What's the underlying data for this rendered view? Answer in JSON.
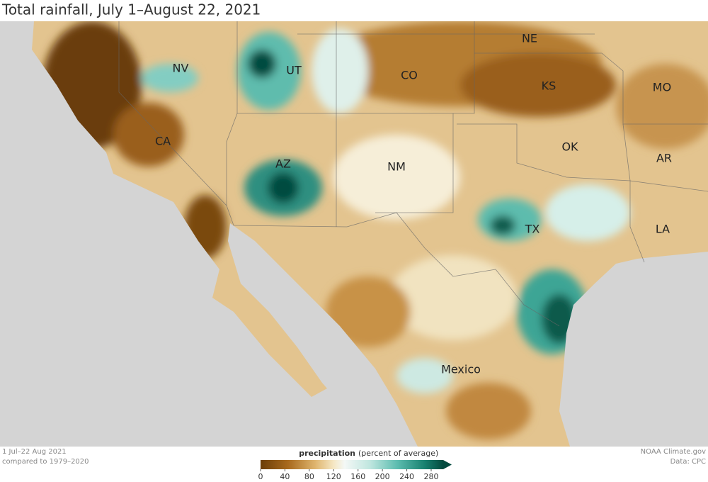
{
  "title": "Total rainfall, July 1–August 22, 2021",
  "labels": [
    "NV",
    "UT",
    "CO",
    "NE",
    "KS",
    "MO",
    "CA",
    "AZ",
    "NM",
    "OK",
    "AR",
    "TX",
    "LA",
    "Mexico"
  ],
  "legend": {
    "title": "precipitation",
    "subtitle": "(percent of average)",
    "ticks": [
      0,
      40,
      80,
      120,
      160,
      200,
      240,
      280
    ]
  },
  "footer": {
    "left": [
      "1 Jul–22 Aug 2021",
      "compared to 1979–2020"
    ],
    "right": [
      "NOAA Climate.gov",
      "Data: CPC"
    ]
  }
}
